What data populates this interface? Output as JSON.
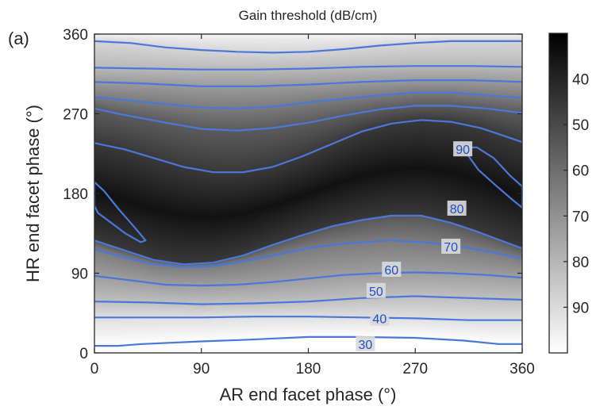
{
  "panel_label": "(a)",
  "chart_data": {
    "type": "heatmap",
    "title": "Gain threshold (dB/cm)",
    "xlabel": "AR end facet phase (°)",
    "ylabel": "HR end facet phase (°)",
    "xlim": [
      0,
      360
    ],
    "ylim": [
      0,
      360
    ],
    "xticks": [
      0,
      90,
      180,
      270,
      360
    ],
    "yticks": [
      0,
      90,
      180,
      270,
      360
    ],
    "colorbar": {
      "range": [
        30,
        100
      ],
      "ticks": [
        40,
        50,
        60,
        70,
        80,
        90
      ],
      "colormap": "gray",
      "low_color": "#ffffff",
      "high_color": "#000000"
    },
    "contour_color": "#4a78d8",
    "contour_label_color": "#1e4fc8",
    "contours": [
      {
        "level": 30,
        "points": [
          [
            0,
            8
          ],
          [
            20,
            8
          ],
          [
            40,
            10
          ],
          [
            90,
            13
          ],
          [
            130,
            15
          ],
          [
            180,
            18
          ],
          [
            220,
            18
          ],
          [
            270,
            17
          ],
          [
            310,
            14
          ],
          [
            340,
            10
          ],
          [
            360,
            10
          ]
        ]
      },
      {
        "level": 40,
        "points": [
          [
            0,
            40
          ],
          [
            45,
            40
          ],
          [
            90,
            40
          ],
          [
            135,
            41
          ],
          [
            180,
            41
          ],
          [
            225,
            40
          ],
          [
            270,
            39
          ],
          [
            315,
            37
          ],
          [
            360,
            37
          ]
        ]
      },
      {
        "level": 50,
        "points": [
          [
            0,
            58
          ],
          [
            45,
            57
          ],
          [
            90,
            55
          ],
          [
            135,
            56
          ],
          [
            180,
            58
          ],
          [
            225,
            62
          ],
          [
            270,
            64
          ],
          [
            315,
            62
          ],
          [
            360,
            60
          ]
        ]
      },
      {
        "level": 60,
        "points": [
          [
            0,
            87
          ],
          [
            30,
            82
          ],
          [
            60,
            77
          ],
          [
            90,
            76
          ],
          [
            120,
            77
          ],
          [
            150,
            80
          ],
          [
            180,
            84
          ],
          [
            210,
            88
          ],
          [
            240,
            90
          ],
          [
            270,
            91
          ],
          [
            300,
            90
          ],
          [
            330,
            88
          ],
          [
            360,
            85
          ]
        ]
      },
      {
        "level": 70,
        "points": [
          [
            0,
            117
          ],
          [
            25,
            108
          ],
          [
            50,
            100
          ],
          [
            75,
            97
          ],
          [
            100,
            98
          ],
          [
            125,
            103
          ],
          [
            150,
            110
          ],
          [
            175,
            117
          ],
          [
            200,
            122
          ],
          [
            225,
            125
          ],
          [
            250,
            127
          ],
          [
            275,
            125
          ],
          [
            300,
            122
          ],
          [
            325,
            116
          ],
          [
            345,
            111
          ],
          [
            360,
            106
          ]
        ]
      },
      {
        "level": 80,
        "points": [
          [
            0,
            127
          ],
          [
            25,
            116
          ],
          [
            50,
            105
          ],
          [
            75,
            100
          ],
          [
            100,
            102
          ],
          [
            125,
            110
          ],
          [
            150,
            122
          ],
          [
            175,
            133
          ],
          [
            200,
            143
          ],
          [
            225,
            150
          ],
          [
            250,
            155
          ],
          [
            275,
            155
          ],
          [
            300,
            147
          ],
          [
            320,
            138
          ],
          [
            340,
            128
          ],
          [
            360,
            118
          ]
        ]
      },
      {
        "level": 90,
        "points": [
          [
            0,
            237
          ],
          [
            25,
            230
          ],
          [
            50,
            220
          ],
          [
            75,
            210
          ],
          [
            100,
            204
          ],
          [
            125,
            204
          ],
          [
            150,
            210
          ],
          [
            175,
            222
          ],
          [
            200,
            236
          ],
          [
            225,
            250
          ],
          [
            250,
            259
          ],
          [
            275,
            263
          ],
          [
            300,
            261
          ],
          [
            325,
            254
          ],
          [
            345,
            245
          ],
          [
            360,
            238
          ]
        ]
      },
      {
        "level": 90,
        "points": [
          [
            0,
            276
          ],
          [
            20,
            270
          ],
          [
            40,
            265
          ],
          [
            60,
            260
          ],
          [
            90,
            253
          ],
          [
            120,
            251
          ],
          [
            150,
            254
          ],
          [
            180,
            260
          ],
          [
            210,
            268
          ],
          [
            240,
            275
          ],
          [
            270,
            279
          ],
          [
            300,
            279
          ],
          [
            330,
            276
          ],
          [
            360,
            271
          ]
        ]
      },
      {
        "level": 90,
        "points": [
          [
            0,
            289
          ],
          [
            30,
            285
          ],
          [
            60,
            281
          ],
          [
            90,
            277
          ],
          [
            120,
            276
          ],
          [
            150,
            278
          ],
          [
            180,
            283
          ],
          [
            210,
            287
          ],
          [
            240,
            291
          ],
          [
            270,
            294
          ],
          [
            300,
            294
          ],
          [
            330,
            291
          ],
          [
            360,
            288
          ]
        ]
      },
      {
        "level": 90,
        "points": [
          [
            0,
            306
          ],
          [
            45,
            304
          ],
          [
            90,
            301
          ],
          [
            135,
            301
          ],
          [
            180,
            303
          ],
          [
            225,
            306
          ],
          [
            270,
            308
          ],
          [
            315,
            308
          ],
          [
            360,
            306
          ]
        ]
      },
      {
        "level": 90,
        "points": [
          [
            0,
            322
          ],
          [
            45,
            321
          ],
          [
            90,
            320
          ],
          [
            135,
            320
          ],
          [
            180,
            321
          ],
          [
            225,
            323
          ],
          [
            270,
            324
          ],
          [
            315,
            324
          ],
          [
            360,
            323
          ]
        ]
      },
      {
        "level": 90,
        "points": [
          [
            0,
            352
          ],
          [
            30,
            350
          ],
          [
            60,
            345
          ],
          [
            90,
            342
          ],
          [
            120,
            340
          ],
          [
            150,
            339
          ],
          [
            180,
            340
          ],
          [
            210,
            343
          ],
          [
            240,
            347
          ],
          [
            270,
            350
          ],
          [
            300,
            352
          ],
          [
            330,
            352
          ],
          [
            360,
            352
          ]
        ]
      },
      {
        "level": 90,
        "closed": true,
        "points": [
          [
            0,
            193
          ],
          [
            8,
            183
          ],
          [
            20,
            163
          ],
          [
            33,
            143
          ],
          [
            43,
            127
          ],
          [
            39,
            125
          ],
          [
            26,
            135
          ],
          [
            13,
            148
          ],
          [
            3,
            158
          ],
          [
            0,
            166
          ]
        ]
      },
      {
        "level": 90,
        "closed": true,
        "points": [
          [
            322,
            232
          ],
          [
            336,
            220
          ],
          [
            350,
            200
          ],
          [
            360,
            188
          ],
          [
            360,
            164
          ],
          [
            350,
            175
          ],
          [
            337,
            190
          ],
          [
            323,
            207
          ],
          [
            315,
            222
          ],
          [
            316,
            232
          ]
        ]
      }
    ],
    "contour_labels": [
      {
        "text": "30",
        "x": 228,
        "y": 10
      },
      {
        "text": "40",
        "x": 240,
        "y": 39
      },
      {
        "text": "50",
        "x": 237,
        "y": 70
      },
      {
        "text": "60",
        "x": 250,
        "y": 94
      },
      {
        "text": "70",
        "x": 300,
        "y": 120
      },
      {
        "text": "80",
        "x": 305,
        "y": 163
      },
      {
        "text": "90",
        "x": 310,
        "y": 230
      }
    ]
  }
}
